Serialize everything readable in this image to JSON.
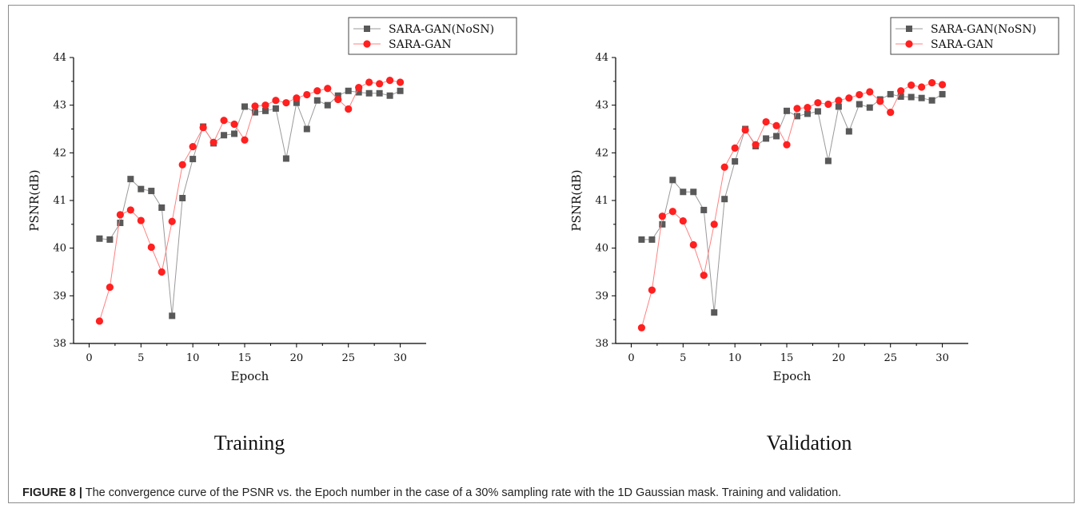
{
  "figure": {
    "caption_label": "FIGURE 8 |",
    "caption_text": " The convergence curve of the PSNR vs. the Epoch number in the case of a 30% sampling rate with the 1D Gaussian mask. Training and validation."
  },
  "colors": {
    "nosn": "#595959",
    "gan": "#ff2020",
    "axis": "#000000"
  },
  "chart_data": [
    {
      "type": "line",
      "title": "Training",
      "xlabel": "Epoch",
      "ylabel": "PSNR(dB)",
      "xlim": [
        -1.5,
        32.5
      ],
      "ylim": [
        38,
        44
      ],
      "xticks": [
        0,
        5,
        10,
        15,
        20,
        25,
        30
      ],
      "yticks": [
        38,
        39,
        40,
        41,
        42,
        43,
        44
      ],
      "legend": "top-right",
      "x": [
        1,
        2,
        3,
        4,
        5,
        6,
        7,
        8,
        9,
        10,
        11,
        12,
        13,
        14,
        15,
        16,
        17,
        18,
        19,
        20,
        21,
        22,
        23,
        24,
        25,
        26,
        27,
        28,
        29,
        30
      ],
      "series": [
        {
          "name": "SARA-GAN(NoSN)",
          "marker": "square",
          "values": [
            40.2,
            40.18,
            40.53,
            41.45,
            41.24,
            41.2,
            40.85,
            38.58,
            41.05,
            41.87,
            42.55,
            42.2,
            42.37,
            42.4,
            42.97,
            42.85,
            42.88,
            42.93,
            41.88,
            43.05,
            42.5,
            43.1,
            43.0,
            43.2,
            43.3,
            43.27,
            43.25,
            43.25,
            43.2,
            43.3
          ]
        },
        {
          "name": "SARA-GAN",
          "marker": "circle",
          "values": [
            38.47,
            39.18,
            40.7,
            40.8,
            40.58,
            40.02,
            39.5,
            40.56,
            41.75,
            42.13,
            42.53,
            42.22,
            42.68,
            42.6,
            42.27,
            42.98,
            43.0,
            43.1,
            43.05,
            43.15,
            43.22,
            43.3,
            43.35,
            43.12,
            42.92,
            43.37,
            43.48,
            43.45,
            43.52,
            43.48
          ]
        }
      ]
    },
    {
      "type": "line",
      "title": "Validation",
      "xlabel": "Epoch",
      "ylabel": "PSNR(dB)",
      "xlim": [
        -1.5,
        32.5
      ],
      "ylim": [
        38,
        44
      ],
      "xticks": [
        0,
        5,
        10,
        15,
        20,
        25,
        30
      ],
      "yticks": [
        38,
        39,
        40,
        41,
        42,
        43,
        44
      ],
      "legend": "top-right",
      "x": [
        1,
        2,
        3,
        4,
        5,
        6,
        7,
        8,
        9,
        10,
        11,
        12,
        13,
        14,
        15,
        16,
        17,
        18,
        19,
        20,
        21,
        22,
        23,
        24,
        25,
        26,
        27,
        28,
        29,
        30
      ],
      "series": [
        {
          "name": "SARA-GAN(NoSN)",
          "marker": "square",
          "values": [
            40.18,
            40.18,
            40.5,
            41.43,
            41.18,
            41.18,
            40.8,
            38.65,
            41.03,
            41.82,
            42.5,
            42.14,
            42.3,
            42.35,
            42.88,
            42.77,
            42.82,
            42.87,
            41.83,
            42.97,
            42.45,
            43.02,
            42.95,
            43.12,
            43.23,
            43.18,
            43.17,
            43.15,
            43.1,
            43.23
          ]
        },
        {
          "name": "SARA-GAN",
          "marker": "circle",
          "values": [
            38.33,
            39.12,
            40.67,
            40.77,
            40.57,
            40.07,
            39.43,
            40.5,
            41.7,
            42.1,
            42.48,
            42.17,
            42.65,
            42.57,
            42.17,
            42.93,
            42.95,
            43.05,
            43.02,
            43.1,
            43.15,
            43.22,
            43.28,
            43.08,
            42.85,
            43.3,
            43.42,
            43.38,
            43.47,
            43.43
          ]
        }
      ]
    }
  ]
}
